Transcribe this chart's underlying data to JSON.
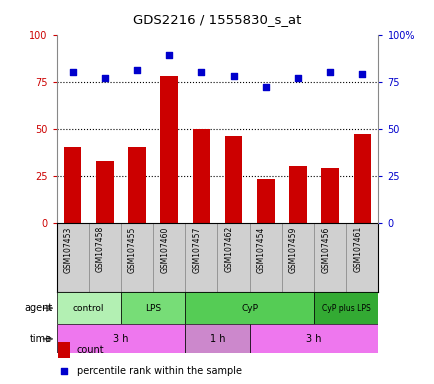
{
  "title": "GDS2216 / 1555830_s_at",
  "samples": [
    "GSM107453",
    "GSM107458",
    "GSM107455",
    "GSM107460",
    "GSM107457",
    "GSM107462",
    "GSM107454",
    "GSM107459",
    "GSM107456",
    "GSM107461"
  ],
  "counts": [
    40,
    33,
    40,
    78,
    50,
    46,
    23,
    30,
    29,
    47
  ],
  "percentiles": [
    80,
    77,
    81,
    89,
    80,
    78,
    72,
    77,
    80,
    79
  ],
  "bar_color": "#cc0000",
  "dot_color": "#0000cc",
  "ylim_left": [
    0,
    100
  ],
  "ylim_right": [
    0,
    100
  ],
  "yticks_left": [
    0,
    25,
    50,
    75,
    100
  ],
  "yticks_right": [
    0,
    25,
    50,
    75,
    100
  ],
  "ytick_labels_right": [
    "0",
    "25",
    "50",
    "75",
    "100%"
  ],
  "hlines": [
    25,
    50,
    75
  ],
  "agent_groups": [
    {
      "label": "control",
      "start": 0,
      "end": 2,
      "color": "#b3f0b3"
    },
    {
      "label": "LPS",
      "start": 2,
      "end": 4,
      "color": "#77dd77"
    },
    {
      "label": "CyP",
      "start": 4,
      "end": 8,
      "color": "#55cc55"
    },
    {
      "label": "CyP plus LPS",
      "start": 8,
      "end": 10,
      "color": "#33aa33"
    }
  ],
  "time_groups": [
    {
      "label": "3 h",
      "start": 0,
      "end": 4,
      "color": "#ee77ee"
    },
    {
      "label": "1 h",
      "start": 4,
      "end": 6,
      "color": "#cc88cc"
    },
    {
      "label": "3 h",
      "start": 6,
      "end": 10,
      "color": "#ee77ee"
    }
  ],
  "sample_box_color": "#d0d0d0",
  "sample_box_edge": "#888888",
  "legend_count_color": "#cc0000",
  "legend_pct_color": "#0000cc",
  "background_color": "#ffffff",
  "tick_label_color_left": "#cc0000",
  "tick_label_color_right": "#0000cc"
}
